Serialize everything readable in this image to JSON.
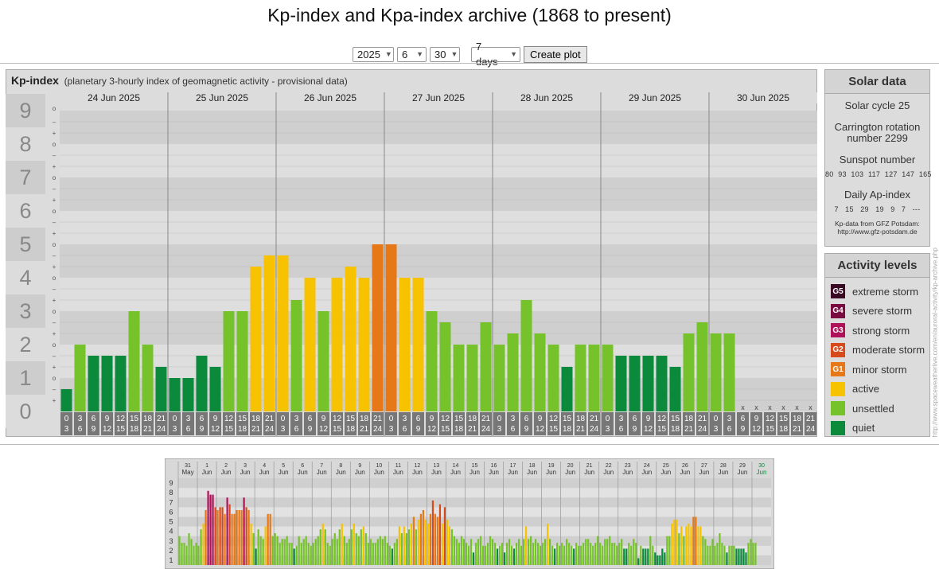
{
  "page": {
    "title": "Kp-index and Kpa-index archive (1868 to present)"
  },
  "controls": {
    "year": "2025",
    "month": "6",
    "day": "30",
    "span": "7 days",
    "button": "Create plot"
  },
  "kp_panel": {
    "heading": "Kp-index",
    "subheading": "(planetary 3-hourly index of geomagnetic activity - provisional data)"
  },
  "solar": {
    "heading": "Solar data",
    "cycle": "Solar cycle 25",
    "carrington": "Carrington rotation number 2299",
    "sunspot_label": "Sunspot number",
    "sunspot_values": "80  93  103  117  127  147  165",
    "ap_label": "Daily Ap-index",
    "ap_values": "7   15   29   19   9   7   ---",
    "source": "Kp-data from GFZ Potsdam: http://www.gfz-potsdam.de"
  },
  "activity": {
    "heading": "Activity levels",
    "levels": [
      {
        "badge": "G5",
        "label": "extreme storm",
        "color": "#3a0a24"
      },
      {
        "badge": "G4",
        "label": "severe storm",
        "color": "#7a0b40"
      },
      {
        "badge": "G3",
        "label": "strong storm",
        "color": "#b0125a"
      },
      {
        "badge": "G2",
        "label": "moderate storm",
        "color": "#d64a1c"
      },
      {
        "badge": "G1",
        "label": "minor storm",
        "color": "#e67817"
      },
      {
        "badge": "",
        "label": "active",
        "color": "#f7c200"
      },
      {
        "badge": "",
        "label": "unsettled",
        "color": "#75c22a"
      },
      {
        "badge": "",
        "label": "quiet",
        "color": "#0b8a3c"
      }
    ]
  },
  "credit": "http://www.spaceweatherlive.com/en/auroral-activity/kp-archive.php",
  "chart_data": [
    {
      "type": "bar",
      "title": "Kp-index",
      "ylim": [
        0,
        9
      ],
      "yticks": [
        "0",
        "1",
        "2",
        "3",
        "4",
        "5",
        "6",
        "7",
        "8",
        "9"
      ],
      "days": [
        "24 Jun 2025",
        "25 Jun 2025",
        "26 Jun 2025",
        "27 Jun 2025",
        "28 Jun 2025",
        "29 Jun 2025",
        "30 Jun 2025"
      ],
      "hour_labels": [
        [
          "0",
          "3"
        ],
        [
          "3",
          "6"
        ],
        [
          "6",
          "9"
        ],
        [
          "9",
          "12"
        ],
        [
          "12",
          "15"
        ],
        [
          "15",
          "18"
        ],
        [
          "18",
          "21"
        ],
        [
          "21",
          "24"
        ]
      ],
      "missing_marker": "x",
      "values": [
        0.667,
        2,
        1.667,
        1.667,
        1.667,
        3,
        2,
        1.333,
        1,
        1,
        1.667,
        1.333,
        3,
        3,
        4.333,
        4.667,
        4.667,
        3.333,
        4,
        3,
        4,
        4.333,
        4,
        5,
        5,
        4,
        4,
        3,
        2.667,
        2,
        2,
        2.667,
        2,
        2.333,
        3.333,
        2.333,
        2,
        1.333,
        2,
        2,
        2,
        1.667,
        1.667,
        1.667,
        1.667,
        1.333,
        2.333,
        2.667,
        2.333,
        2.333,
        null,
        null,
        null,
        null,
        null,
        null
      ],
      "colors": {
        "quiet": "#0b8a3c",
        "unsettled": "#75c22a",
        "active": "#f7c200",
        "G1": "#e67817",
        "G2": "#d64a1c",
        "G3": "#b0125a",
        "G4": "#7a0b40"
      }
    },
    {
      "type": "bar",
      "title": "",
      "ylim": [
        0,
        9
      ],
      "yticks": [
        "1",
        "2",
        "3",
        "4",
        "5",
        "6",
        "7",
        "8",
        "9"
      ],
      "days": [
        {
          "d": "31",
          "m": "May"
        },
        {
          "d": "1",
          "m": "Jun"
        },
        {
          "d": "2",
          "m": "Jun"
        },
        {
          "d": "3",
          "m": "Jun"
        },
        {
          "d": "4",
          "m": "Jun"
        },
        {
          "d": "5",
          "m": "Jun"
        },
        {
          "d": "6",
          "m": "Jun"
        },
        {
          "d": "7",
          "m": "Jun"
        },
        {
          "d": "8",
          "m": "Jun"
        },
        {
          "d": "9",
          "m": "Jun"
        },
        {
          "d": "10",
          "m": "Jun"
        },
        {
          "d": "11",
          "m": "Jun"
        },
        {
          "d": "12",
          "m": "Jun"
        },
        {
          "d": "13",
          "m": "Jun"
        },
        {
          "d": "14",
          "m": "Jun"
        },
        {
          "d": "15",
          "m": "Jun"
        },
        {
          "d": "16",
          "m": "Jun"
        },
        {
          "d": "17",
          "m": "Jun"
        },
        {
          "d": "18",
          "m": "Jun"
        },
        {
          "d": "19",
          "m": "Jun"
        },
        {
          "d": "20",
          "m": "Jun"
        },
        {
          "d": "21",
          "m": "Jun"
        },
        {
          "d": "22",
          "m": "Jun"
        },
        {
          "d": "23",
          "m": "Jun"
        },
        {
          "d": "24",
          "m": "Jun"
        },
        {
          "d": "25",
          "m": "Jun"
        },
        {
          "d": "26",
          "m": "Jun"
        },
        {
          "d": "27",
          "m": "Jun"
        },
        {
          "d": "28",
          "m": "Jun"
        },
        {
          "d": "29",
          "m": "Jun"
        },
        {
          "d": "30",
          "m": "Jun"
        }
      ],
      "values": [
        [
          3,
          2.3,
          2.3,
          2,
          3.3,
          2.7,
          2,
          2.3
        ],
        [
          2,
          3.7,
          4.3,
          5.7,
          7.7,
          7.3,
          7.3,
          6
        ],
        [
          5.7,
          6,
          6,
          5.3,
          7,
          6.3,
          5.3,
          5.3
        ],
        [
          5.7,
          5.7,
          5.7,
          7,
          6,
          5.7,
          4.3,
          3.3
        ],
        [
          1.7,
          3.7,
          3,
          2.7,
          4,
          5.3,
          5.3,
          3
        ],
        [
          3.3,
          3,
          2.3,
          2.7,
          2.7,
          3,
          2.3,
          2.3
        ],
        [
          1.7,
          2,
          3,
          2.3,
          2.7,
          3,
          2.3,
          2
        ],
        [
          2.3,
          2.7,
          3,
          3.7,
          4.3,
          3.7,
          2.3,
          2
        ],
        [
          2.7,
          3.3,
          2.7,
          3.7,
          4.3,
          3,
          2.3,
          2.7
        ],
        [
          3.7,
          4.3,
          3.3,
          3,
          3.7,
          4,
          3.3,
          2.3
        ],
        [
          2.7,
          2.3,
          2.3,
          2.7,
          3,
          2.7,
          3,
          2.3
        ],
        [
          2,
          1.7,
          2.3,
          2.7,
          4,
          3.3,
          4,
          3.3
        ],
        [
          3.7,
          4.3,
          5,
          3.7,
          4.7,
          5.3,
          5.7,
          4.7
        ],
        [
          4.3,
          5.3,
          6.7,
          5.3,
          5,
          6.3,
          4.3,
          6
        ],
        [
          4.7,
          4,
          3.7,
          3,
          2.7,
          2.3,
          3,
          2.7
        ],
        [
          2.3,
          2,
          2.7,
          1.3,
          2.3,
          2.7,
          3,
          2
        ],
        [
          2,
          2.3,
          3,
          2.7,
          2.3,
          1.7,
          2,
          2.3
        ],
        [
          1.3,
          2.3,
          2.7,
          2,
          1.7,
          2.3,
          2.7,
          2
        ],
        [
          2.7,
          4,
          2.7,
          3,
          2.3,
          2.7,
          2.3,
          2
        ],
        [
          2.3,
          2.7,
          4.3,
          2.7,
          2,
          1.7,
          2.3,
          2
        ],
        [
          2.3,
          2,
          2.7,
          2.3,
          2,
          1.7,
          2.3,
          2
        ],
        [
          2,
          2.3,
          2.7,
          2.7,
          2.3,
          2,
          2.3,
          3
        ],
        [
          2.3,
          2,
          2.7,
          2.7,
          3,
          2.3,
          2.3,
          2
        ],
        [
          2.3,
          2.7,
          1.7,
          1.7,
          2.3,
          2,
          2.7,
          2.3
        ],
        [
          0.7,
          2,
          1.7,
          1.7,
          1.7,
          3,
          2,
          1.3
        ],
        [
          1,
          1,
          1.7,
          1.3,
          3,
          3,
          4.3,
          4.7
        ],
        [
          4.7,
          3.3,
          4,
          3,
          4,
          4.3,
          4,
          5
        ],
        [
          5,
          4,
          4,
          3,
          2.7,
          2,
          2,
          2.7
        ],
        [
          2,
          2.3,
          3.3,
          2.3,
          2,
          1.3,
          2,
          2
        ],
        [
          2,
          1.7,
          1.7,
          1.7,
          1.7,
          1.3,
          2.3,
          2.7
        ],
        [
          2.3,
          2.3
        ]
      ]
    }
  ]
}
